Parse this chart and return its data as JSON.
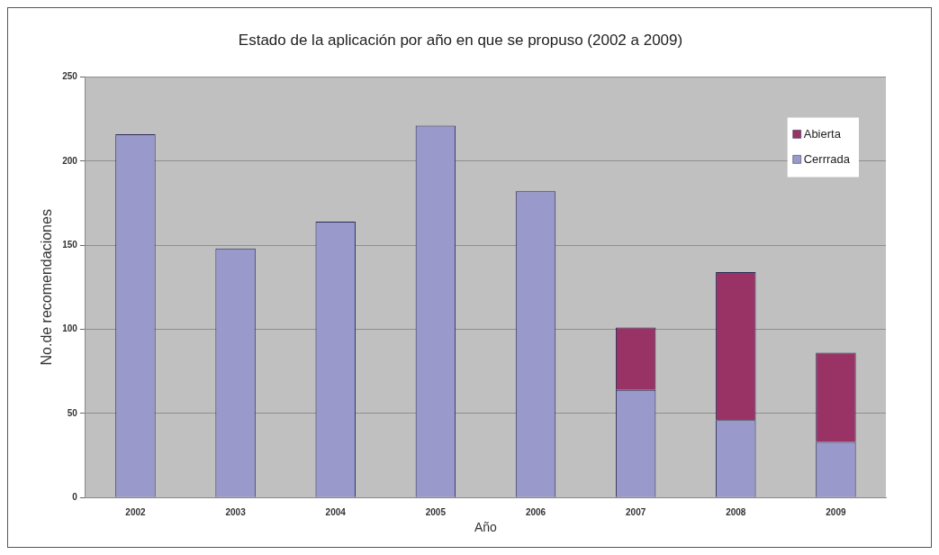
{
  "chart_data": {
    "type": "bar",
    "title": "Estado de la aplicación por año en que se propuso (2002 a 2009)",
    "xlabel": "Año",
    "ylabel": "No.de recomendaciones",
    "categories": [
      "2002",
      "2003",
      "2004",
      "2005",
      "2006",
      "2007",
      "2008",
      "2009"
    ],
    "series": [
      {
        "name": "Cerrrada",
        "color": "#9999cc",
        "values": [
          216,
          148,
          164,
          221,
          182,
          64,
          46,
          33
        ]
      },
      {
        "name": "Abierta",
        "color": "#993366",
        "values": [
          0,
          0,
          0,
          0,
          0,
          37,
          88,
          53
        ]
      }
    ],
    "stacked": true,
    "ylim": [
      0,
      250
    ],
    "yticks": [
      0,
      50,
      100,
      150,
      200,
      250
    ],
    "grid": "y",
    "legend": "top right"
  }
}
